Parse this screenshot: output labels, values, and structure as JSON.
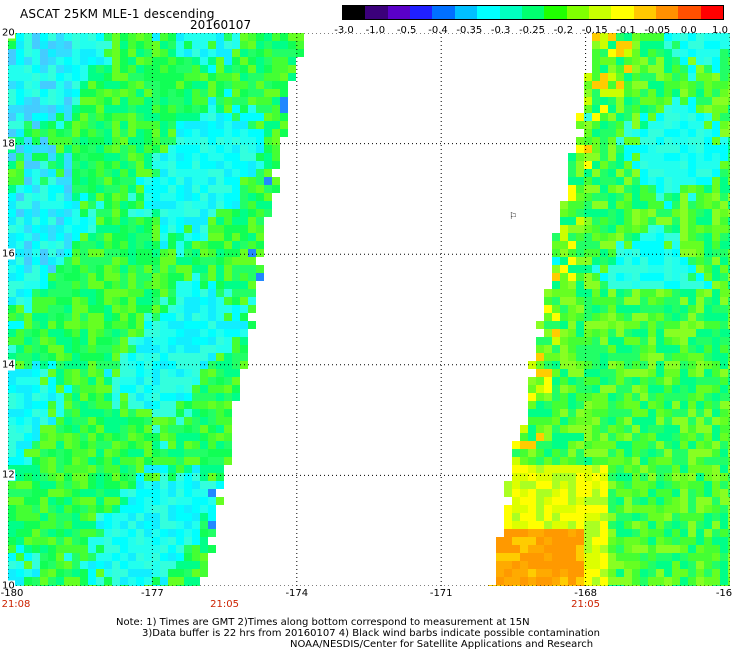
{
  "title": "ASCAT 25KM MLE-1 descending",
  "date": "20160107",
  "colorbar": {
    "labels": [
      "-3.0",
      "-1.0",
      "-0.5",
      "-0.4",
      "-0.35",
      "-0.3",
      "-0.25",
      "-0.2",
      "-0.15",
      "-0.1",
      "-0.05",
      "0.0",
      "1.0"
    ],
    "colors": [
      "#000000",
      "#3b007a",
      "#5a00c8",
      "#2020ff",
      "#0070ff",
      "#00c0ff",
      "#00ffff",
      "#00ffc0",
      "#00ff70",
      "#20ff00",
      "#80ff00",
      "#c8ff00",
      "#ffff00",
      "#ffc800",
      "#ff9000",
      "#ff5000",
      "#ff0000"
    ]
  },
  "map": {
    "lat_labels": [
      "20",
      "18",
      "16",
      "14",
      "12",
      "10"
    ],
    "lon_labels": [
      "-180",
      "-177",
      "-174",
      "-171",
      "-168",
      "-16"
    ],
    "time_labels": [
      "21:08",
      "21:05",
      "21:05"
    ],
    "lat_range": [
      10,
      20
    ],
    "lon_range": [
      -180,
      -165
    ],
    "swaths": [
      {
        "side": "left",
        "lon_west": -180,
        "lon_east_top": -174,
        "lon_east_bottom": -176
      },
      {
        "side": "right",
        "lon_west_top": -167.7,
        "lon_west_bottom": -169.9,
        "lon_east": -165
      }
    ],
    "barb_symbol": "⚐"
  },
  "notes": {
    "line1": "Note: 1) Times are GMT 2)Times along bottom correspond to measurement at 15N",
    "line2": "3)Data buffer is 22 hrs from 20160107 4) Black wind barbs indicate possible contamination",
    "line3": "NOAA/NESDIS/Center for Satellite Applications and Research"
  }
}
